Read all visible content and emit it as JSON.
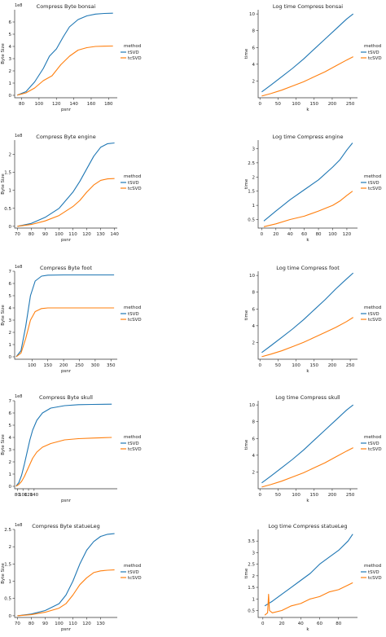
{
  "colors": {
    "tsvd": "#1f77b4",
    "tcsvd": "#ff7f0e",
    "axis": "#333333"
  },
  "chart_data": [
    {
      "type": "line",
      "title": "Compress Byte bonsai",
      "xlabel": "psnr",
      "ylabel": "Byte Size",
      "exponent": "1e8",
      "xlim": [
        72,
        190
      ],
      "ylim": [
        -0.2,
        7.0
      ],
      "xticks": [
        80,
        100,
        120,
        140,
        160,
        180
      ],
      "yticks": [
        0,
        1,
        2,
        3,
        4,
        5,
        6
      ],
      "legend": {
        "title": "method",
        "placement": "right"
      },
      "series": [
        {
          "name": "tSVD",
          "x": [
            75,
            85,
            95,
            105,
            112,
            120,
            128,
            135,
            145,
            155,
            165,
            175,
            185
          ],
          "y": [
            0.02,
            0.3,
            1.1,
            2.2,
            3.2,
            3.8,
            4.8,
            5.6,
            6.2,
            6.5,
            6.65,
            6.7,
            6.72
          ]
        },
        {
          "name": "tcSVD",
          "x": [
            75,
            85,
            95,
            105,
            115,
            125,
            135,
            145,
            155,
            165,
            175,
            185
          ],
          "y": [
            0.01,
            0.2,
            0.6,
            1.2,
            1.6,
            2.5,
            3.2,
            3.7,
            3.9,
            4.0,
            4.02,
            4.03
          ]
        }
      ]
    },
    {
      "type": "line",
      "title": "Log time Compress bonsai",
      "xlabel": "k",
      "ylabel": "time",
      "xlim": [
        -5,
        270
      ],
      "ylim": [
        0,
        10.5
      ],
      "xticks": [
        0,
        50,
        100,
        150,
        200,
        250
      ],
      "yticks": [
        2,
        4,
        6,
        8,
        10
      ],
      "legend": {
        "title": "method",
        "placement": "right"
      },
      "series": [
        {
          "name": "tSVD",
          "x": [
            5,
            30,
            60,
            90,
            120,
            150,
            180,
            210,
            240,
            258
          ],
          "y": [
            0.7,
            1.5,
            2.5,
            3.5,
            4.6,
            5.8,
            7.0,
            8.2,
            9.4,
            10.0
          ]
        },
        {
          "name": "tcSVD",
          "x": [
            5,
            30,
            60,
            90,
            120,
            150,
            180,
            210,
            240,
            258
          ],
          "y": [
            0.2,
            0.5,
            0.9,
            1.4,
            1.9,
            2.5,
            3.1,
            3.8,
            4.5,
            4.9
          ]
        }
      ]
    },
    {
      "type": "line",
      "title": "Compress Byte engine",
      "xlabel": "psnr",
      "ylabel": "Byte Size",
      "exponent": "1e8",
      "xlim": [
        68,
        142
      ],
      "ylim": [
        -0.05,
        2.4
      ],
      "xticks": [
        70,
        80,
        90,
        100,
        110,
        120,
        130,
        140
      ],
      "yticks": [
        0.0,
        0.5,
        1.0,
        1.5,
        2.0
      ],
      "legend": {
        "title": "method",
        "placement": "right"
      },
      "series": [
        {
          "name": "tSVD",
          "x": [
            70,
            80,
            90,
            100,
            110,
            115,
            120,
            125,
            130,
            135,
            140
          ],
          "y": [
            0.0,
            0.08,
            0.25,
            0.5,
            0.95,
            1.25,
            1.6,
            1.95,
            2.2,
            2.3,
            2.32
          ]
        },
        {
          "name": "tcSVD",
          "x": [
            70,
            80,
            90,
            100,
            110,
            115,
            120,
            125,
            130,
            135,
            140
          ],
          "y": [
            0.0,
            0.05,
            0.15,
            0.3,
            0.55,
            0.72,
            0.95,
            1.15,
            1.28,
            1.32,
            1.33
          ]
        }
      ]
    },
    {
      "type": "line",
      "title": "Log time Compress engine",
      "xlabel": "k",
      "ylabel": "time",
      "xlim": [
        -5,
        135
      ],
      "ylim": [
        0.2,
        3.3
      ],
      "xticks": [
        0,
        20,
        40,
        60,
        80,
        100,
        120
      ],
      "yticks": [
        0.5,
        1.0,
        1.5,
        2.0,
        2.5,
        3.0
      ],
      "legend": {
        "title": "method",
        "placement": "right"
      },
      "series": [
        {
          "name": "tSVD",
          "x": [
            3,
            20,
            40,
            60,
            80,
            100,
            110,
            120,
            128
          ],
          "y": [
            0.45,
            0.8,
            1.2,
            1.55,
            1.9,
            2.35,
            2.6,
            2.95,
            3.2
          ]
        },
        {
          "name": "tcSVD",
          "x": [
            3,
            20,
            40,
            60,
            80,
            100,
            110,
            120,
            128
          ],
          "y": [
            0.25,
            0.35,
            0.5,
            0.62,
            0.8,
            1.0,
            1.15,
            1.35,
            1.5
          ]
        }
      ]
    },
    {
      "type": "line",
      "title": "Compress Byte foot",
      "xlabel": "psnr",
      "ylabel": "Byte Size",
      "exponent": "1e8",
      "xlim": [
        45,
        370
      ],
      "ylim": [
        -0.2,
        7.0
      ],
      "xticks": [
        100,
        150,
        200,
        250,
        300,
        350
      ],
      "yticks": [
        0,
        1,
        2,
        3,
        4,
        5,
        6,
        7
      ],
      "legend": {
        "title": "method",
        "placement": "right"
      },
      "series": [
        {
          "name": "tSVD",
          "x": [
            50,
            65,
            80,
            95,
            110,
            130,
            150,
            200,
            250,
            300,
            360
          ],
          "y": [
            0.0,
            0.5,
            2.5,
            5.0,
            6.2,
            6.6,
            6.68,
            6.7,
            6.7,
            6.7,
            6.7
          ]
        },
        {
          "name": "tcSVD",
          "x": [
            50,
            65,
            80,
            95,
            110,
            130,
            150,
            200,
            250,
            300,
            360
          ],
          "y": [
            0.0,
            0.3,
            1.5,
            3.0,
            3.7,
            3.95,
            4.0,
            4.0,
            4.0,
            4.0,
            4.0
          ]
        }
      ]
    },
    {
      "type": "line",
      "title": "Log time Compress foot",
      "xlabel": "k",
      "ylabel": "time",
      "xlim": [
        -5,
        270
      ],
      "ylim": [
        0,
        10.5
      ],
      "xticks": [
        0,
        50,
        100,
        150,
        200,
        250
      ],
      "yticks": [
        2,
        4,
        6,
        8,
        10
      ],
      "legend": {
        "title": "method",
        "placement": "right"
      },
      "series": [
        {
          "name": "tSVD",
          "x": [
            5,
            30,
            60,
            90,
            120,
            150,
            180,
            210,
            240,
            258
          ],
          "y": [
            0.8,
            1.6,
            2.6,
            3.6,
            4.7,
            5.9,
            7.1,
            8.4,
            9.6,
            10.3
          ]
        },
        {
          "name": "tcSVD",
          "x": [
            5,
            30,
            60,
            90,
            120,
            150,
            180,
            210,
            240,
            258
          ],
          "y": [
            0.3,
            0.6,
            1.0,
            1.5,
            2.0,
            2.6,
            3.2,
            3.8,
            4.5,
            5.0
          ]
        }
      ]
    },
    {
      "type": "line",
      "title": "Compress Byte skull",
      "xlabel": "psnr",
      "ylabel": "Byte Size",
      "exponent": "1e8",
      "xlim": [
        70,
        440
      ],
      "ylim": [
        -0.2,
        7.0
      ],
      "xticks": [
        80,
        100,
        120,
        140
      ],
      "yticks": [
        0,
        1,
        2,
        3,
        4,
        5,
        6,
        7
      ],
      "legend": {
        "title": "method",
        "placement": "right"
      },
      "series": [
        {
          "name": "tSVD",
          "x": [
            75,
            85,
            95,
            105,
            115,
            125,
            135,
            150,
            170,
            200,
            250,
            300,
            350,
            420
          ],
          "y": [
            0.02,
            0.3,
            0.9,
            1.8,
            2.8,
            3.8,
            4.6,
            5.4,
            6.0,
            6.4,
            6.6,
            6.68,
            6.7,
            6.72
          ]
        },
        {
          "name": "tcSVD",
          "x": [
            75,
            85,
            95,
            105,
            115,
            125,
            135,
            150,
            170,
            200,
            250,
            300,
            350,
            420
          ],
          "y": [
            0.01,
            0.15,
            0.4,
            0.8,
            1.3,
            1.8,
            2.3,
            2.8,
            3.2,
            3.5,
            3.8,
            3.9,
            3.95,
            4.0
          ]
        }
      ]
    },
    {
      "type": "line",
      "title": "Log time Compress skull",
      "xlabel": "k",
      "ylabel": "time",
      "xlim": [
        -5,
        270
      ],
      "ylim": [
        0,
        10.5
      ],
      "xticks": [
        0,
        50,
        100,
        150,
        200,
        250
      ],
      "yticks": [
        2,
        4,
        6,
        8,
        10
      ],
      "legend": {
        "title": "method",
        "placement": "right"
      },
      "series": [
        {
          "name": "tSVD",
          "x": [
            5,
            30,
            60,
            90,
            120,
            150,
            180,
            210,
            240,
            258
          ],
          "y": [
            0.7,
            1.5,
            2.5,
            3.5,
            4.6,
            5.8,
            7.0,
            8.2,
            9.4,
            10.0
          ]
        },
        {
          "name": "tcSVD",
          "x": [
            5,
            30,
            60,
            90,
            120,
            150,
            180,
            210,
            240,
            258
          ],
          "y": [
            0.2,
            0.5,
            0.9,
            1.4,
            1.9,
            2.5,
            3.1,
            3.8,
            4.5,
            4.9
          ]
        }
      ]
    },
    {
      "type": "line",
      "title": "Compress Byte statueLeg",
      "xlabel": "psnr",
      "ylabel": "Byte Size",
      "exponent": "1e8",
      "xlim": [
        68,
        142
      ],
      "ylim": [
        -0.05,
        2.5
      ],
      "xticks": [
        70,
        80,
        90,
        100,
        110,
        120,
        130
      ],
      "yticks": [
        0.0,
        0.5,
        1.0,
        1.5,
        2.0,
        2.5
      ],
      "legend": {
        "title": "method",
        "placement": "right"
      },
      "series": [
        {
          "name": "tSVD",
          "x": [
            70,
            80,
            90,
            100,
            105,
            110,
            115,
            120,
            125,
            130,
            135,
            140
          ],
          "y": [
            0.0,
            0.05,
            0.15,
            0.35,
            0.6,
            1.0,
            1.5,
            1.9,
            2.15,
            2.3,
            2.36,
            2.38
          ]
        },
        {
          "name": "tcSVD",
          "x": [
            70,
            80,
            90,
            100,
            105,
            110,
            115,
            120,
            125,
            130,
            135,
            140
          ],
          "y": [
            0.0,
            0.03,
            0.1,
            0.22,
            0.35,
            0.6,
            0.9,
            1.1,
            1.25,
            1.3,
            1.32,
            1.33
          ]
        }
      ]
    },
    {
      "type": "line",
      "title": "Log time Compress statueLeg",
      "xlabel": "k",
      "ylabel": "time",
      "xlim": [
        -5,
        100
      ],
      "ylim": [
        0.2,
        4.0
      ],
      "xticks": [
        0,
        20,
        40,
        60,
        80
      ],
      "yticks": [
        0.5,
        1.0,
        1.5,
        2.0,
        2.5,
        3.0,
        3.5
      ],
      "legend": {
        "title": "method",
        "placement": "right"
      },
      "series": [
        {
          "name": "tSVD",
          "x": [
            2,
            10,
            20,
            30,
            40,
            50,
            60,
            70,
            80,
            90,
            95
          ],
          "y": [
            0.7,
            0.9,
            1.2,
            1.5,
            1.8,
            2.1,
            2.5,
            2.8,
            3.1,
            3.5,
            3.8
          ]
        },
        {
          "name": "tcSVD",
          "x": [
            2,
            5,
            6,
            7,
            10,
            20,
            30,
            40,
            50,
            60,
            70,
            80,
            90,
            95
          ],
          "y": [
            0.3,
            0.4,
            1.2,
            0.5,
            0.4,
            0.5,
            0.7,
            0.8,
            1.0,
            1.1,
            1.3,
            1.4,
            1.6,
            1.7
          ]
        }
      ]
    }
  ]
}
